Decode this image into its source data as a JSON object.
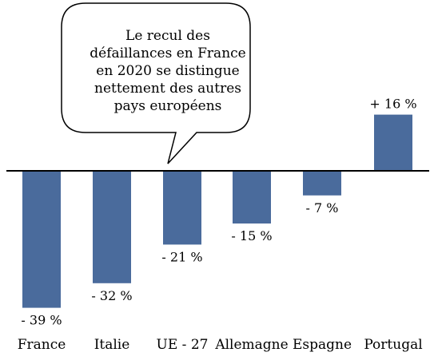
{
  "chart_data": {
    "type": "bar",
    "categories": [
      "France",
      "Italie",
      "UE - 27",
      "Allemagne",
      "Espagne",
      "Portugal"
    ],
    "values": [
      -39,
      -32,
      -21,
      -15,
      -7,
      16
    ],
    "data_labels": [
      "- 39 %",
      "- 32 %",
      "- 21 %",
      "- 15 %",
      "- 7 %",
      "+ 16 %"
    ],
    "bar_color": "#4a6b9c",
    "title": "",
    "xlabel": "",
    "ylabel": "",
    "ylim": [
      -44,
      41
    ],
    "grid": false,
    "legend": "none"
  },
  "callout": {
    "text": "Le recul des défaillances en France en 2020 se distingue nettement des autres pays européens"
  }
}
